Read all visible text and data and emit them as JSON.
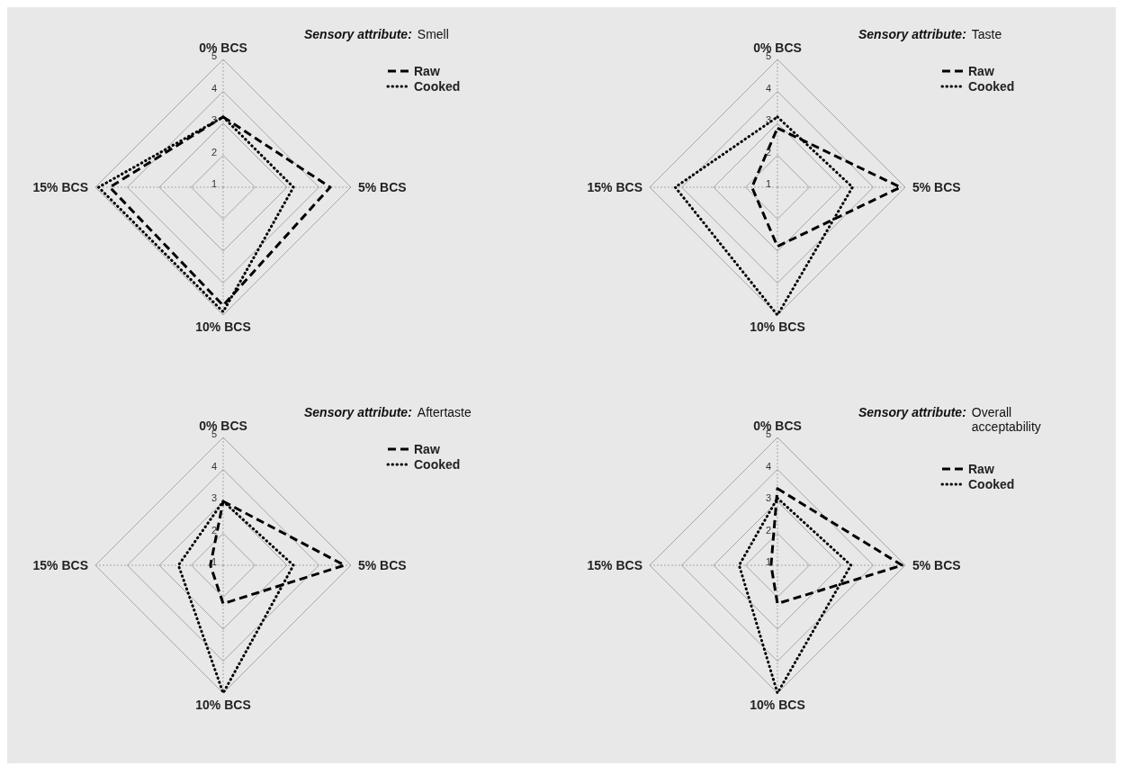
{
  "chart_data": [
    {
      "type": "radar",
      "title": "Sensory attribute:",
      "subtitle": "Smell",
      "categories": [
        "0% BCS",
        "5% BCS",
        "10% BCS",
        "15% BCS"
      ],
      "series": [
        {
          "name": "Raw",
          "color": "#000000",
          "line_style": "dashed",
          "values": [
            3.2,
            4.35,
            4.7,
            4.55
          ]
        },
        {
          "name": "Cooked",
          "color": "#000000",
          "line_style": "dotted",
          "values": [
            3.2,
            3.2,
            4.9,
            4.9
          ]
        }
      ],
      "ylim": [
        1,
        5
      ],
      "yticks": [
        1,
        2,
        3,
        4,
        5
      ],
      "grid": true,
      "legend": "top right"
    },
    {
      "type": "radar",
      "title": "Sensory attribute:",
      "subtitle": "Taste",
      "categories": [
        "0% BCS",
        "5% BCS",
        "10% BCS",
        "15% BCS"
      ],
      "series": [
        {
          "name": "Raw",
          "color": "#000000",
          "line_style": "dashed",
          "values": [
            2.85,
            4.85,
            2.85,
            1.8
          ]
        },
        {
          "name": "Cooked",
          "color": "#000000",
          "line_style": "dotted",
          "values": [
            3.2,
            3.35,
            5,
            4.2
          ]
        }
      ],
      "ylim": [
        1,
        5
      ],
      "yticks": [
        1,
        2,
        3,
        4,
        5
      ],
      "grid": true,
      "legend": "top right"
    },
    {
      "type": "radar",
      "title": "Sensory attribute:",
      "subtitle": "Aftertaste",
      "categories": [
        "0% BCS",
        "5% BCS",
        "10% BCS",
        "15% BCS"
      ],
      "series": [
        {
          "name": "Raw",
          "color": "#000000",
          "line_style": "dashed",
          "values": [
            3,
            4.8,
            2.2,
            1.4
          ]
        },
        {
          "name": "Cooked",
          "color": "#000000",
          "line_style": "dotted",
          "values": [
            3,
            3.2,
            5,
            2.4
          ]
        }
      ],
      "ylim": [
        1,
        5
      ],
      "yticks": [
        1,
        2,
        3,
        4,
        5
      ],
      "grid": true,
      "legend": "top right"
    },
    {
      "type": "radar",
      "title": "Sensory attribute:",
      "subtitle": "Overall acceptability",
      "categories": [
        "0% BCS",
        "5% BCS",
        "10% BCS",
        "15% BCS"
      ],
      "series": [
        {
          "name": "Raw",
          "color": "#000000",
          "line_style": "dashed",
          "values": [
            3.4,
            4.9,
            2.2,
            1.2
          ]
        },
        {
          "name": "Cooked",
          "color": "#000000",
          "line_style": "dotted",
          "values": [
            3.1,
            3.3,
            5,
            2.2
          ]
        }
      ],
      "ylim": [
        1,
        5
      ],
      "yticks": [
        1,
        2,
        3,
        4,
        5
      ],
      "grid": true,
      "legend": "top right"
    }
  ]
}
